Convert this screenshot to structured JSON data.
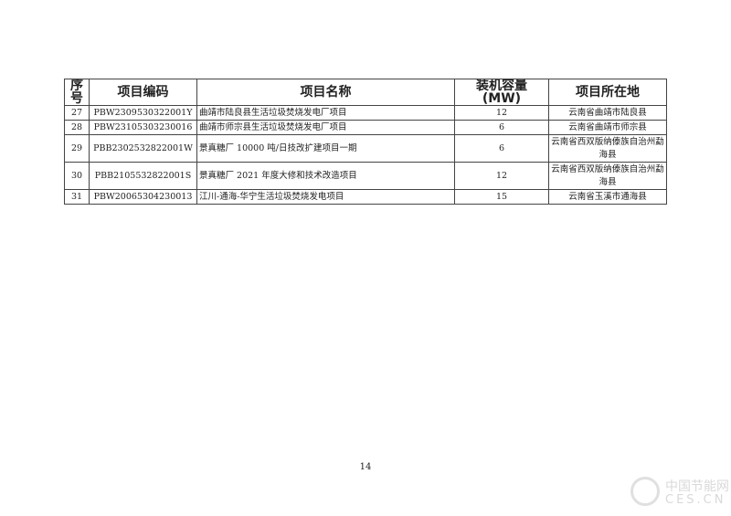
{
  "table": {
    "headers": [
      "序号",
      "项目编码",
      "项目名称",
      "装机容量(MW)",
      "项目所在地"
    ],
    "rows": [
      [
        "27",
        "PBW2309530322001Y",
        "曲靖市陆良县生活垃圾焚烧发电厂项目",
        "12",
        "云南省曲靖市陆良县"
      ],
      [
        "28",
        "PBW23105303230016",
        "曲靖市师宗县生活垃圾焚烧发电厂项目",
        "6",
        "云南省曲靖市师宗县"
      ],
      [
        "29",
        "PBB2302532822001W",
        "景真糖厂 10000 吨/日技改扩建项目一期",
        "6",
        "云南省西双版纳傣族自治州勐海县"
      ],
      [
        "30",
        "PBB2105532822001S",
        "景真糖厂 2021 年度大修和技术改造项目",
        "12",
        "云南省西双版纳傣族自治州勐海县"
      ],
      [
        "31",
        "PBW20065304230013",
        "江川-通海-华宁生活垃圾焚烧发电项目",
        "15",
        "云南省玉溪市通海县"
      ]
    ]
  },
  "page_number": "14",
  "watermark": {
    "line1": "中国节能网",
    "line2": "CES.CN"
  }
}
